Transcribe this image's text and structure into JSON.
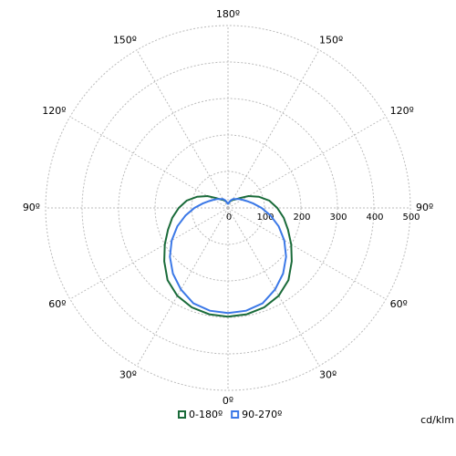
{
  "chart_data": {
    "type": "polar",
    "unit_label": "cd/klm",
    "rlim": [
      0,
      500
    ],
    "rticks": [
      0,
      100,
      200,
      300,
      400,
      500
    ],
    "angle_ticks": [
      {
        "value": 0,
        "label": "0º"
      },
      {
        "value": 30,
        "label": "30º"
      },
      {
        "value": 60,
        "label": "60º"
      },
      {
        "value": 90,
        "label": "90º"
      },
      {
        "value": 120,
        "label": "120º"
      },
      {
        "value": 150,
        "label": "150º"
      },
      {
        "value": 180,
        "label": "180º"
      }
    ],
    "grid": true,
    "angles": [
      0,
      10,
      20,
      30,
      40,
      50,
      60,
      70,
      80,
      90,
      100,
      110,
      120,
      130,
      140,
      150,
      160,
      170,
      180
    ],
    "series": [
      {
        "name": "0-180º",
        "color": "#1a6b3a",
        "values": [
          298,
          296,
          290,
          278,
          258,
          228,
          200,
          175,
          155,
          135,
          115,
          90,
          65,
          42,
          30,
          25,
          20,
          15,
          10
        ]
      },
      {
        "name": "90-270º",
        "color": "#3b78e7",
        "values": [
          288,
          286,
          278,
          258,
          235,
          208,
          178,
          148,
          118,
          92,
          70,
          55,
          45,
          38,
          32,
          28,
          22,
          15,
          10
        ]
      }
    ]
  }
}
